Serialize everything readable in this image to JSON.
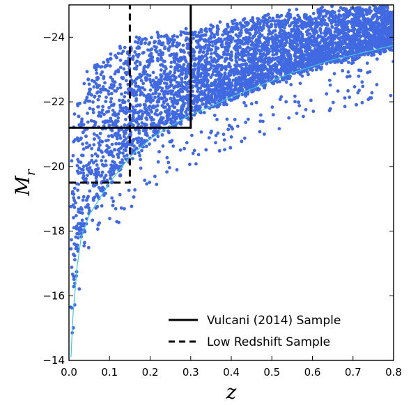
{
  "chart_data": {
    "type": "scatter",
    "title": "",
    "xlabel": "z",
    "ylabel_main": "M",
    "ylabel_sub": "r",
    "xlim": [
      0.0,
      0.8
    ],
    "ylim": [
      -14,
      -25
    ],
    "y_inverted": true,
    "grid": false,
    "legend_position": "bottom-right",
    "x_ticks": [
      0.0,
      0.1,
      0.2,
      0.3,
      0.4,
      0.5,
      0.6,
      0.7,
      0.8
    ],
    "x_tick_labels": [
      "0.0",
      "0.1",
      "0.2",
      "0.3",
      "0.4",
      "0.5",
      "0.6",
      "0.7",
      "0.8"
    ],
    "y_ticks": [
      -24,
      -22,
      -20,
      -18,
      -16,
      -14
    ],
    "y_tick_labels": [
      "−24",
      "−22",
      "−20",
      "−18",
      "−16",
      "−14"
    ],
    "point_color": "#4169e1",
    "curve_color": "#40c8d8",
    "completeness_curve": {
      "x": [
        0.005,
        0.01,
        0.02,
        0.03,
        0.05,
        0.08,
        0.1,
        0.15,
        0.2,
        0.25,
        0.3,
        0.35,
        0.4,
        0.45,
        0.5,
        0.55,
        0.6,
        0.65,
        0.7,
        0.75,
        0.8
      ],
      "y": [
        -14.1,
        -15.4,
        -16.9,
        -17.8,
        -18.5,
        -19.1,
        -19.5,
        -20.3,
        -20.85,
        -21.25,
        -21.6,
        -21.85,
        -22.15,
        -22.4,
        -22.65,
        -22.9,
        -23.1,
        -23.3,
        -23.45,
        -23.6,
        -23.75
      ]
    },
    "series": [
      {
        "name": "Vulcani (2014) Sample",
        "style": "solid",
        "x": [
          0.0,
          0.3,
          0.3
        ],
        "y": [
          -21.2,
          -21.2,
          -25.0
        ]
      },
      {
        "name": "Low Redshift Sample",
        "style": "dashed",
        "x": [
          0.0,
          0.15,
          0.15
        ],
        "y": [
          -19.5,
          -19.5,
          -25.0
        ]
      }
    ],
    "scatter_envelope": {
      "x": [
        0.005,
        0.01,
        0.02,
        0.03,
        0.05,
        0.08,
        0.1,
        0.15,
        0.2,
        0.25,
        0.3,
        0.35,
        0.4,
        0.45,
        0.5,
        0.55,
        0.6,
        0.65,
        0.7,
        0.75,
        0.8
      ],
      "y_faint": [
        -14.1,
        -15.4,
        -16.9,
        -17.8,
        -18.5,
        -19.1,
        -19.5,
        -20.3,
        -20.85,
        -21.25,
        -21.6,
        -21.85,
        -22.15,
        -22.4,
        -22.65,
        -22.9,
        -23.1,
        -23.3,
        -23.45,
        -23.6,
        -23.75
      ],
      "y_bright": [
        -20.5,
        -21.5,
        -22.2,
        -22.6,
        -23.0,
        -23.3,
        -23.5,
        -23.8,
        -24.0,
        -24.1,
        -24.2,
        -24.3,
        -24.4,
        -24.5,
        -24.6,
        -24.7,
        -24.75,
        -24.8,
        -24.85,
        -24.9,
        -24.95
      ]
    }
  }
}
